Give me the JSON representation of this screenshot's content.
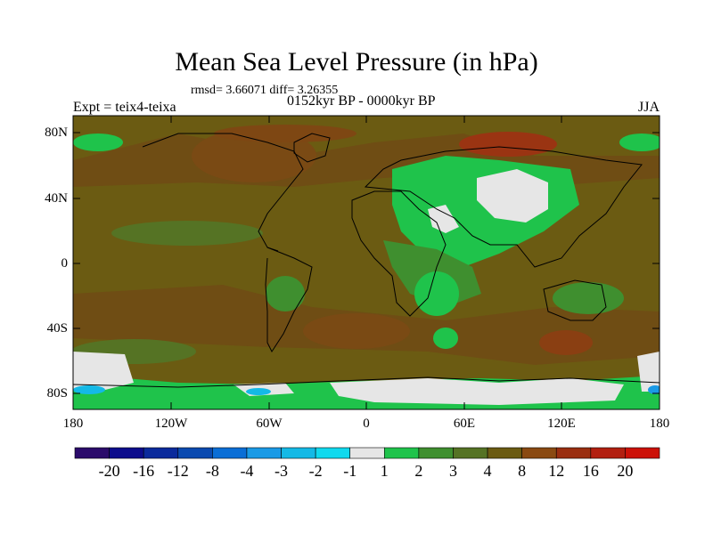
{
  "title": "Mean Sea Level Pressure (in hPa)",
  "stats": "rmsd= 3.66071 diff= 3.26355",
  "period": "0152kyr BP - 0000kyr BP",
  "experiment": "Expt = teix4-teixa",
  "season": "JJA",
  "y_axis_labels": [
    "80N",
    "40N",
    "0",
    "40S",
    "80S"
  ],
  "x_axis_labels": [
    "180",
    "120W",
    "60W",
    "0",
    "60E",
    "120E",
    "180"
  ],
  "colorbar": {
    "colors": [
      "#2b0b6b",
      "#0c0c8c",
      "#0a2a9c",
      "#0a4ab0",
      "#0a6ed6",
      "#1a9ae6",
      "#14b9e6",
      "#10d9ee",
      "#e6e6e6",
      "#1fc34b",
      "#3f8f2f",
      "#557324",
      "#6b5b12",
      "#8a4a12",
      "#9a2e10",
      "#b21f10",
      "#cc1108"
    ],
    "labels": [
      "-20",
      "-16",
      "-12",
      "-8",
      "-4",
      "-3",
      "-2",
      "-1",
      "1",
      "2",
      "3",
      "4",
      "8",
      "12",
      "16",
      "20"
    ]
  }
}
